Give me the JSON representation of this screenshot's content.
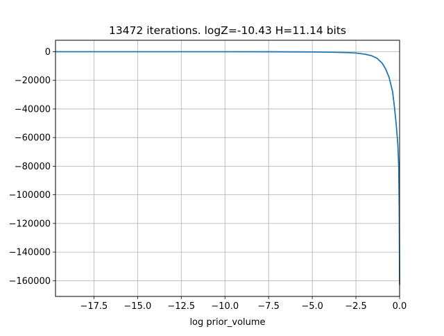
{
  "chart_data": {
    "type": "line",
    "title": "13472 iterations. logZ=-10.43 H=11.14 bits",
    "xlabel": "log prior_volume",
    "ylabel": "",
    "xlim": [
      -19.7,
      0.0
    ],
    "ylim": [
      -171000,
      8000
    ],
    "xticks": [
      -17.5,
      -15.0,
      -12.5,
      -10.0,
      -7.5,
      -5.0,
      -2.5,
      0.0
    ],
    "xtick_labels": [
      "−17.5",
      "−15.0",
      "−12.5",
      "−10.0",
      "−7.5",
      "−5.0",
      "−2.5",
      "0.0"
    ],
    "yticks": [
      0,
      -20000,
      -40000,
      -60000,
      -80000,
      -100000,
      -120000,
      -140000,
      -160000
    ],
    "ytick_labels": [
      "0",
      "−20000",
      "−40000",
      "−60000",
      "−80000",
      "−100000",
      "−120000",
      "−140000",
      "−160000"
    ],
    "grid": true,
    "series": [
      {
        "color": "#1f77b4",
        "x": [
          -19.7,
          -15.0,
          -10.0,
          -7.5,
          -5.0,
          -4.0,
          -3.0,
          -2.5,
          -2.0,
          -1.6,
          -1.3,
          -1.0,
          -0.8,
          -0.6,
          -0.4,
          -0.3,
          -0.2,
          -0.1,
          -0.05,
          -0.02,
          0.0
        ],
        "y": [
          0,
          0,
          -10,
          -30,
          -150,
          -300,
          -600,
          -900,
          -1700,
          -2800,
          -4500,
          -8000,
          -12000,
          -18000,
          -28000,
          -38000,
          -50000,
          -65000,
          -80000,
          -110000,
          -163000
        ]
      }
    ]
  }
}
